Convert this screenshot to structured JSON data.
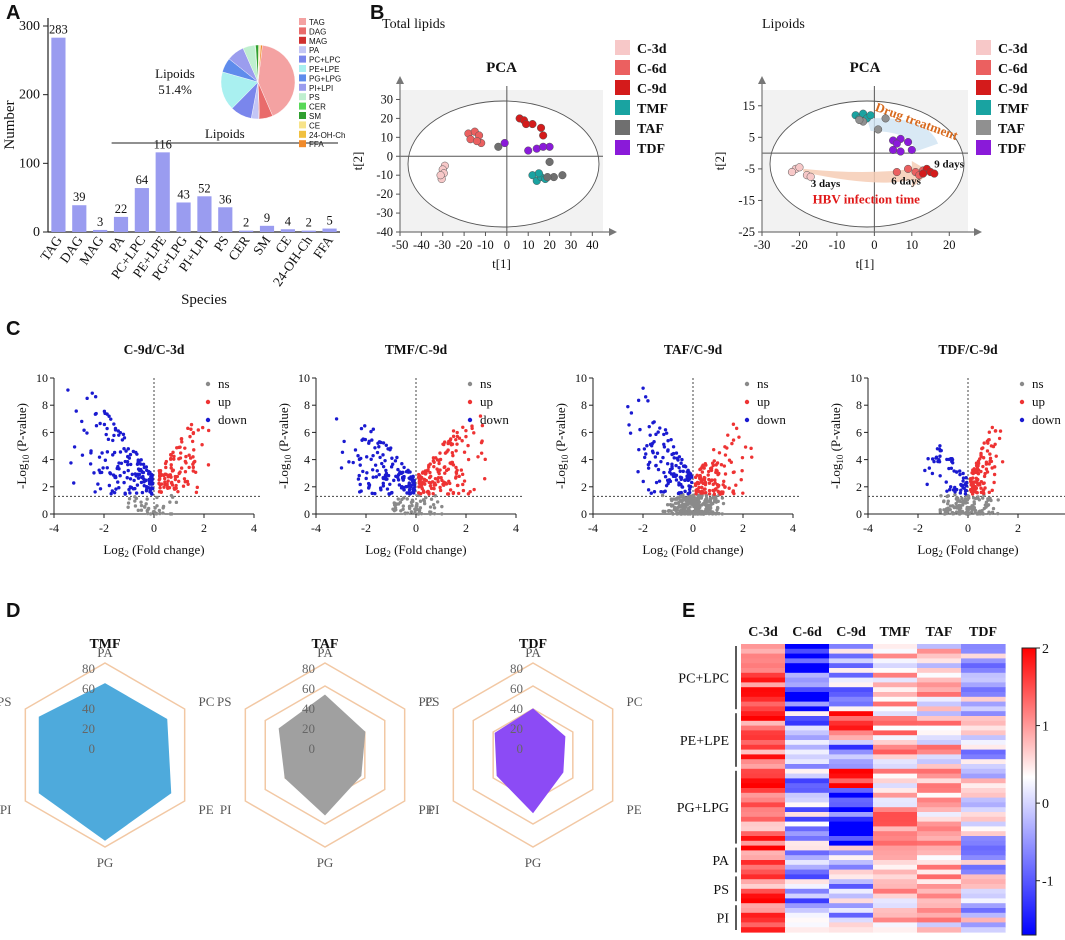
{
  "panel_labels": [
    "A",
    "B",
    "C",
    "D",
    "E"
  ],
  "chart_data": [
    {
      "id": "A",
      "type": "bar",
      "ylabel": "Number",
      "xlabel": "Species",
      "ylim": [
        0,
        300
      ],
      "yticks": [
        0,
        100,
        200,
        300
      ],
      "categories": [
        "TAG",
        "DAG",
        "MAG",
        "PA",
        "PC+LPC",
        "PE+LPE",
        "PG+LPG",
        "PI+LPI",
        "PS",
        "CER",
        "SM",
        "CE",
        "24-OH-Ch",
        "FFA"
      ],
      "values": [
        283,
        39,
        3,
        22,
        64,
        116,
        43,
        52,
        36,
        2,
        9,
        4,
        2,
        5
      ],
      "bar_color": "#9a9cf0",
      "bracket_label": "Lipoids",
      "inset_pie": {
        "label": "Lipoids",
        "percent": "51.4%",
        "slices": [
          {
            "name": "TAG",
            "value": 283,
            "color": "#f4a2a2"
          },
          {
            "name": "DAG",
            "value": 39,
            "color": "#e96b6b"
          },
          {
            "name": "MAG",
            "value": 3,
            "color": "#d03030"
          },
          {
            "name": "PA",
            "value": 22,
            "color": "#c3c6f6"
          },
          {
            "name": "PC+LPC",
            "value": 64,
            "color": "#7a86ec"
          },
          {
            "name": "PE+LPE",
            "value": 116,
            "color": "#a9f0f0"
          },
          {
            "name": "PG+LPG",
            "value": 43,
            "color": "#5f8cec"
          },
          {
            "name": "PI+LPI",
            "value": 52,
            "color": "#9b9dee"
          },
          {
            "name": "PS",
            "value": 36,
            "color": "#bfefcf"
          },
          {
            "name": "CER",
            "value": 2,
            "color": "#58d858"
          },
          {
            "name": "SM",
            "value": 9,
            "color": "#2f9f2f"
          },
          {
            "name": "CE",
            "value": 4,
            "color": "#f7e38a"
          },
          {
            "name": "24-OH-Ch",
            "value": 2,
            "color": "#f0c040"
          },
          {
            "name": "FFA",
            "value": 5,
            "color": "#f08a2a"
          }
        ]
      }
    },
    {
      "id": "B1",
      "type": "scatter",
      "section_title": "Total lipids",
      "title": "PCA",
      "xlabel": "t[1]",
      "ylabel": "t[2]",
      "xlim": [
        -50,
        45
      ],
      "ylim": [
        -40,
        35
      ],
      "xticks": [
        -50,
        -40,
        -30,
        -20,
        -10,
        0,
        10,
        20,
        30,
        40
      ],
      "yticks": [
        -40,
        -30,
        -20,
        -10,
        0,
        10,
        20,
        30
      ],
      "series": [
        {
          "name": "C-3d",
          "color": "#f7c8c8",
          "points": [
            [
              -29,
              -5
            ],
            [
              -30,
              -7
            ],
            [
              -29.5,
              -9
            ],
            [
              -30.5,
              -12
            ],
            [
              -31,
              -10
            ]
          ]
        },
        {
          "name": "C-6d",
          "color": "#eb6060",
          "points": [
            [
              -18,
              12
            ],
            [
              -15,
              13
            ],
            [
              -13,
              11
            ],
            [
              -17,
              9
            ],
            [
              -12,
              7
            ],
            [
              -14,
              8
            ]
          ]
        },
        {
          "name": "C-9d",
          "color": "#d41b1b",
          "points": [
            [
              6,
              20
            ],
            [
              8,
              19
            ],
            [
              12,
              17
            ],
            [
              16,
              15
            ],
            [
              17,
              11
            ],
            [
              9,
              17
            ]
          ]
        },
        {
          "name": "TMF",
          "color": "#19a3a1",
          "points": [
            [
              12,
              -10
            ],
            [
              14,
              -13
            ],
            [
              16,
              -11
            ],
            [
              18,
              -12
            ],
            [
              15,
              -9
            ]
          ]
        },
        {
          "name": "TAF",
          "color": "#6f6f6f",
          "points": [
            [
              -4,
              5
            ],
            [
              20,
              -3
            ],
            [
              22,
              -11
            ],
            [
              26,
              -10
            ],
            [
              19,
              -11
            ]
          ]
        },
        {
          "name": "TDF",
          "color": "#8a1ad9",
          "points": [
            [
              -1,
              7
            ],
            [
              10,
              3
            ],
            [
              14,
              4
            ],
            [
              20,
              5
            ],
            [
              17,
              5
            ]
          ]
        }
      ]
    },
    {
      "id": "B2",
      "type": "scatter",
      "section_title": "Lipoids",
      "title": "PCA",
      "xlabel": "t[1]",
      "ylabel": "t[2]",
      "xlim": [
        -30,
        25
      ],
      "ylim": [
        -25,
        20
      ],
      "xticks": [
        -30,
        -20,
        -10,
        0,
        10,
        20
      ],
      "yticks": [
        -25,
        -15,
        -5,
        5,
        15
      ],
      "annotations": {
        "drug": "Drug treatment",
        "infection": "HBV infection time",
        "d3": "3 days",
        "d6": "6 days",
        "d9": "9 days"
      },
      "series": [
        {
          "name": "C-3d",
          "color": "#f7c8c8",
          "points": [
            [
              -21,
              -5
            ],
            [
              -20,
              -4.5
            ],
            [
              -18,
              -7
            ],
            [
              -17,
              -7.5
            ],
            [
              -22,
              -6
            ]
          ]
        },
        {
          "name": "C-6d",
          "color": "#eb6060",
          "points": [
            [
              6,
              -6
            ],
            [
              9,
              -5
            ],
            [
              11,
              -6
            ],
            [
              12,
              -7
            ],
            [
              13,
              -5.5
            ]
          ]
        },
        {
          "name": "C-9d",
          "color": "#d41b1b",
          "points": [
            [
              14,
              -5
            ],
            [
              15,
              -6
            ],
            [
              16,
              -6.5
            ],
            [
              13,
              -6.5
            ]
          ]
        },
        {
          "name": "TMF",
          "color": "#19a3a1",
          "points": [
            [
              -5,
              12
            ],
            [
              -4,
              11
            ],
            [
              -3,
              12.5
            ],
            [
              -2,
              11
            ],
            [
              -1,
              12
            ]
          ]
        },
        {
          "name": "TAF",
          "color": "#909090",
          "points": [
            [
              -3,
              10
            ],
            [
              1,
              7.5
            ],
            [
              3,
              11
            ],
            [
              -4,
              10.5
            ]
          ]
        },
        {
          "name": "TDF",
          "color": "#8a1ad9",
          "points": [
            [
              5,
              4
            ],
            [
              7,
              4.5
            ],
            [
              9,
              3.5
            ],
            [
              5,
              1
            ],
            [
              7,
              0.5
            ],
            [
              10,
              1
            ],
            [
              6,
              3
            ]
          ]
        }
      ]
    },
    {
      "id": "C",
      "type": "scatter",
      "kind": "volcano",
      "xlabel_main": "Log",
      "xlabel_sub": "2",
      "xlabel_rest": " (Fold change)",
      "ylabel_pre": "-Log",
      "ylabel_sub": "10",
      "ylabel_rest": " (P-value)",
      "xlim": [
        -4,
        4
      ],
      "ylim": [
        0,
        10
      ],
      "xticks": [
        -4,
        -2,
        0,
        2,
        4
      ],
      "yticks": [
        0,
        2,
        4,
        6,
        8,
        10
      ],
      "threshold_y": 1.3,
      "legend": [
        {
          "name": "ns",
          "color": "#8a8a8a"
        },
        {
          "name": "up",
          "color": "#ee3333"
        },
        {
          "name": "down",
          "color": "#1a1ad0"
        }
      ],
      "plots": [
        {
          "title": "C-9d/C-3d",
          "n_down": 170,
          "n_up": 110,
          "n_ns": 40,
          "down_x": [
            -3.5,
            0
          ],
          "up_x": [
            0.2,
            2.4
          ],
          "down_ymax": 9.3,
          "up_ymax": 6.6,
          "seed": 11
        },
        {
          "title": "TMF/C-9d",
          "n_down": 150,
          "n_up": 160,
          "n_ns": 60,
          "down_x": [
            -3.3,
            0
          ],
          "up_x": [
            0.1,
            3.1
          ],
          "down_ymax": 7.2,
          "up_ymax": 7.2,
          "seed": 23
        },
        {
          "title": "TAF/C-9d",
          "n_down": 130,
          "n_up": 120,
          "n_ns": 260,
          "down_x": [
            -2.8,
            0
          ],
          "up_x": [
            0.1,
            2.6
          ],
          "down_ymax": 9.3,
          "up_ymax": 6.6,
          "seed": 37
        },
        {
          "title": "TDF/C-9d",
          "n_down": 60,
          "n_up": 110,
          "n_ns": 120,
          "down_x": [
            -2.2,
            0
          ],
          "up_x": [
            0.1,
            1.6
          ],
          "down_ymax": 5.1,
          "up_ymax": 6.4,
          "seed": 53
        }
      ]
    },
    {
      "id": "D",
      "type": "radar",
      "axes": [
        "PA",
        "PC",
        "PE",
        "PG",
        "PI",
        "PS"
      ],
      "rmax": 80,
      "rticks": [
        0,
        20,
        40,
        60,
        80
      ],
      "charts": [
        {
          "title": "TMF",
          "color": "#4eaadc",
          "values": [
            62,
            62,
            66,
            74,
            66,
            66
          ]
        },
        {
          "title": "TAF",
          "color": "#a0a0a0",
          "values": [
            52,
            40,
            36,
            52,
            40,
            46
          ]
        },
        {
          "title": "TDF",
          "color": "#8c4bf5",
          "values": [
            40,
            32,
            30,
            50,
            36,
            38
          ]
        }
      ]
    },
    {
      "id": "E",
      "type": "heatmap",
      "columns": [
        "C-3d",
        "C-6d",
        "C-9d",
        "TMF",
        "TAF",
        "TDF"
      ],
      "groups": [
        {
          "name": "PC+LPC",
          "rows": 14
        },
        {
          "name": "PE+LPE",
          "rows": 12
        },
        {
          "name": "PG+LPG",
          "rows": 16
        },
        {
          "name": "PA",
          "rows": 6
        },
        {
          "name": "PS",
          "rows": 6
        },
        {
          "name": "PI",
          "rows": 6
        }
      ],
      "colorbar_ticks": [
        {
          "value": 2,
          "label": "2"
        },
        {
          "value": 1,
          "label": "1"
        },
        {
          "value": 0,
          "label": "0"
        },
        {
          "value": -1,
          "label": "-1"
        }
      ],
      "range": [
        -1.7,
        2
      ],
      "column_bias": [
        1.2,
        -0.6,
        -0.4,
        0.55,
        0.35,
        -0.2
      ]
    }
  ]
}
